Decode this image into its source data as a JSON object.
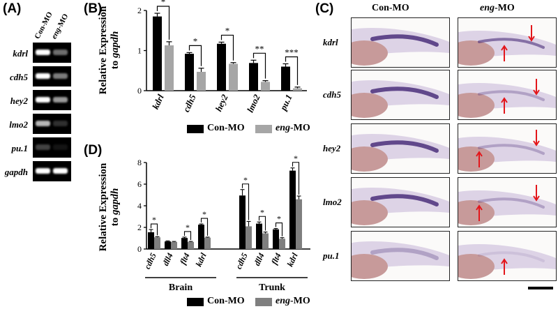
{
  "panels": {
    "a": "(A)",
    "b": "(B)",
    "c": "(C)",
    "d": "(D)"
  },
  "gel": {
    "columns": [
      "Con-MO",
      "eng-MO"
    ],
    "rows": [
      {
        "label": "kdrl",
        "con": 1.0,
        "eng": 0.55
      },
      {
        "label": "cdh5",
        "con": 1.0,
        "eng": 0.6
      },
      {
        "label": "hey2",
        "con": 1.0,
        "eng": 0.7
      },
      {
        "label": "lmo2",
        "con": 0.8,
        "eng": 0.25
      },
      {
        "label": "pu.1",
        "con": 0.35,
        "eng": 0.05
      },
      {
        "label": "gapdh",
        "con": 1.0,
        "eng": 1.0
      }
    ]
  },
  "legend": {
    "con": "Con-MO",
    "eng_prefix": "eng",
    "eng_suffix": "-MO"
  },
  "ish": {
    "head_con": "Con-MO",
    "head_eng_prefix": "eng",
    "head_eng_suffix": "-MO",
    "rows": [
      "kdrl",
      "cdh5",
      "hey2",
      "lmo2",
      "pu.1"
    ]
  },
  "chart_data": [
    {
      "type": "bar",
      "ylabel_line1": "Relative Expression",
      "ylabel_line2_prefix": "to ",
      "ylabel_line2_gene": "gapdh",
      "categories": [
        "kdrl",
        "cdh5",
        "hey2",
        "lmo2",
        "pu.1"
      ],
      "ylim": [
        0,
        2
      ],
      "yticks": [
        "0",
        "1",
        "2"
      ],
      "series": [
        {
          "name": "Con-MO",
          "color": "#000000",
          "values": [
            1.85,
            0.92,
            1.17,
            0.69,
            0.6
          ],
          "errors": [
            0.08,
            0.03,
            0.04,
            0.07,
            0.07
          ]
        },
        {
          "name": "eng-MO",
          "color": "#a6a6a6",
          "values": [
            1.13,
            0.47,
            0.67,
            0.22,
            0.06
          ],
          "errors": [
            0.09,
            0.09,
            0.03,
            0.03,
            0.03
          ]
        }
      ],
      "significance": [
        "*",
        "*",
        "*",
        "**",
        "***"
      ]
    },
    {
      "type": "bar",
      "ylabel_line1": "Relative Expression",
      "ylabel_line2_prefix": "to ",
      "ylabel_line2_gene": "gapdh",
      "ylim": [
        0,
        8
      ],
      "yticks": [
        "0",
        "2",
        "4",
        "6",
        "8"
      ],
      "groups": [
        {
          "label": "Brain",
          "categories": [
            "cdh5",
            "dll4",
            "flt4",
            "kdrl"
          ],
          "con": [
            1.55,
            0.7,
            1.02,
            2.25
          ],
          "eng": [
            1.08,
            0.65,
            0.65,
            1.05
          ],
          "con_err": [
            0.25,
            0.05,
            0.08,
            0.07
          ],
          "eng_err": [
            0.06,
            0.05,
            0.05,
            0.05
          ],
          "sig": [
            "*",
            "",
            "*",
            "*"
          ]
        },
        {
          "label": "Trunk",
          "categories": [
            "cdh5",
            "dll4",
            "flt4",
            "kdrl"
          ],
          "con": [
            4.95,
            2.35,
            1.82,
            7.25
          ],
          "eng": [
            2.1,
            1.45,
            0.95,
            4.6
          ],
          "con_err": [
            0.55,
            0.15,
            0.08,
            0.25
          ],
          "eng_err": [
            0.45,
            0.12,
            0.1,
            0.3
          ],
          "sig": [
            "*",
            "*",
            "*",
            "*"
          ]
        }
      ],
      "series_colors": {
        "con": "#000000",
        "eng": "#7f7f7f"
      }
    }
  ]
}
